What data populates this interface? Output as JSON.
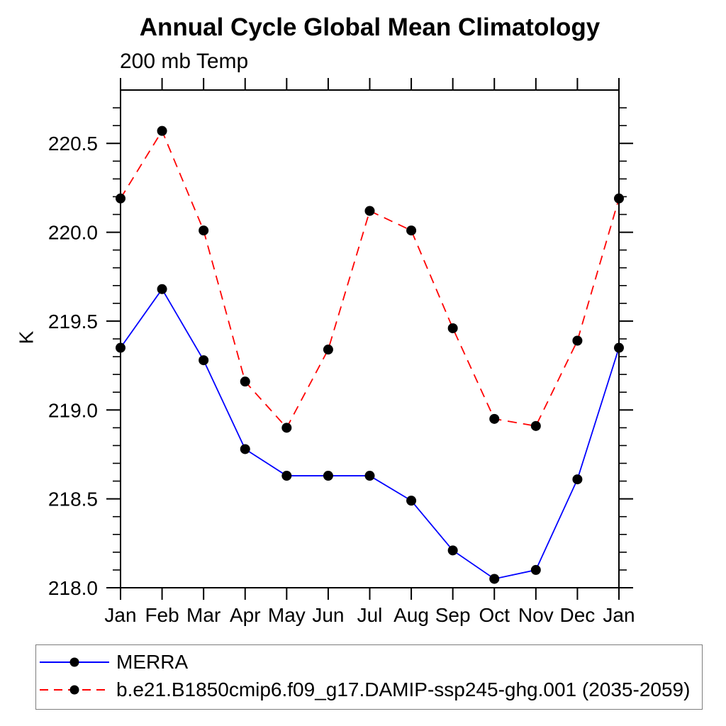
{
  "chart_data": {
    "type": "line",
    "title": "Annual Cycle Global Mean Climatology",
    "subtitle": "200 mb Temp",
    "ylabel": "K",
    "xlabel": "",
    "categories": [
      "Jan",
      "Feb",
      "Mar",
      "Apr",
      "May",
      "Jun",
      "Jul",
      "Aug",
      "Sep",
      "Oct",
      "Nov",
      "Dec",
      "Jan"
    ],
    "ylim": [
      218.0,
      220.8
    ],
    "yticks_major": [
      218.0,
      218.5,
      219.0,
      219.5,
      220.0,
      220.5
    ],
    "ytick_minor_step": 0.1,
    "grid": false,
    "legend_position": "bottom-left-box",
    "axis_color": "#000000",
    "series": [
      {
        "name": "MERRA",
        "color": "#0000ff",
        "line_style": "solid",
        "marker": "filled-circle",
        "marker_color": "#000000",
        "values": [
          219.35,
          219.68,
          219.28,
          218.78,
          218.63,
          218.63,
          218.63,
          218.49,
          218.21,
          218.05,
          218.1,
          218.61,
          219.35
        ]
      },
      {
        "name": "b.e21.B1850cmip6.f09_g17.DAMIP-ssp245-ghg.001 (2035-2059)",
        "color": "#ff0000",
        "line_style": "dashed",
        "marker": "filled-circle",
        "marker_color": "#000000",
        "values": [
          220.19,
          220.57,
          220.01,
          219.16,
          218.9,
          219.34,
          220.12,
          220.01,
          219.46,
          218.95,
          218.91,
          219.39,
          220.19
        ]
      }
    ]
  }
}
